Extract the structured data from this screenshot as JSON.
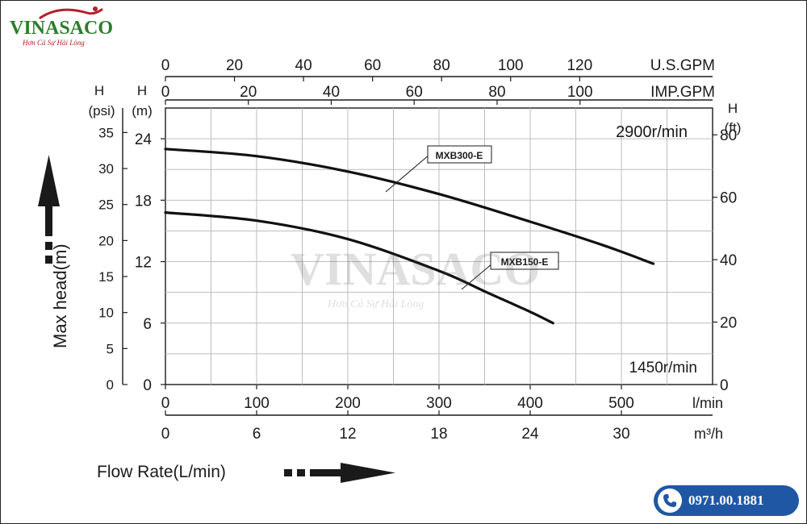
{
  "brand": {
    "name": "VINASACO",
    "tagline": "Hơn Cả Sự Hài Lòng",
    "logo_color": "#2c7d2c",
    "accent_color": "#b3202a"
  },
  "contact": {
    "phone": "0971.00.1881",
    "badge_color": "#1f57a5",
    "icon": "phone-icon"
  },
  "chart_data": {
    "type": "line",
    "title": "",
    "xlabel": "Flow Rate(L/min)",
    "ylabel": "Max head(m)",
    "xlim": [
      0,
      600
    ],
    "ylim": [
      0,
      27
    ],
    "grid": true,
    "speed_labels": [
      "2900r/min",
      "1450r/min"
    ],
    "axes": {
      "x_lmin": {
        "unit": "l/min",
        "ticks": [
          0,
          100,
          200,
          300,
          400,
          500
        ]
      },
      "x_m3h": {
        "unit": "m³/h",
        "ticks": [
          0,
          6,
          12,
          18,
          24,
          30
        ]
      },
      "top_usgpm": {
        "unit": "U.S.GPM",
        "ticks": [
          0,
          20,
          40,
          60,
          80,
          100,
          120
        ]
      },
      "top_impgpm": {
        "unit": "IMP.GPM",
        "ticks": [
          0,
          20,
          40,
          60,
          80,
          100
        ]
      },
      "y_m": {
        "label": "H",
        "unit": "(m)",
        "ticks": [
          0,
          6,
          12,
          18,
          24
        ]
      },
      "y_psi": {
        "label": "H",
        "unit": "(psi)",
        "ticks": [
          0,
          5,
          10,
          15,
          20,
          25,
          30,
          35
        ]
      },
      "y_ft": {
        "label": "H",
        "unit": "(ft)",
        "ticks": [
          0,
          20,
          40,
          60,
          80
        ]
      }
    },
    "series": [
      {
        "name": "MXB300-E",
        "x": [
          0,
          100,
          200,
          300,
          400,
          480,
          535
        ],
        "y": [
          23.0,
          22.3,
          20.8,
          18.6,
          15.9,
          13.6,
          11.8
        ]
      },
      {
        "name": "MXB150-E",
        "x": [
          0,
          100,
          200,
          300,
          350,
          400,
          425
        ],
        "y": [
          16.8,
          16.0,
          14.2,
          11.1,
          9.1,
          7.1,
          6.0
        ]
      }
    ]
  }
}
